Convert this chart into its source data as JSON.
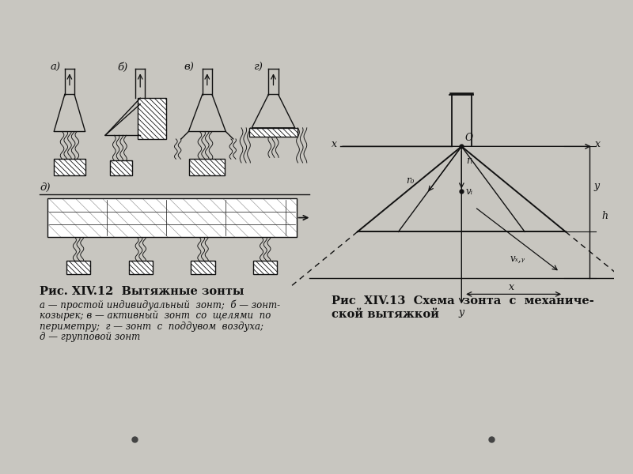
{
  "bg_color": "#c8c6c0",
  "paper_color": "#e8e6e0",
  "line_color": "#111111",
  "title1": "Рис. XIV.12  Вытяжные зонты",
  "caption1_line1": "а — простой индивидуальный  зонт;  б — зонт-",
  "caption1_line2": "козырек; в — активный  зонт  со  щелями  по",
  "caption1_line3": "периметру;  г — зонт  с  поддувом  воздуха;",
  "caption1_line4": "д — групповой зонт",
  "title2": "Рис  XIV.13  Схема  зонта  с  механиче-",
  "title2_line2": "ской вытяжкой"
}
